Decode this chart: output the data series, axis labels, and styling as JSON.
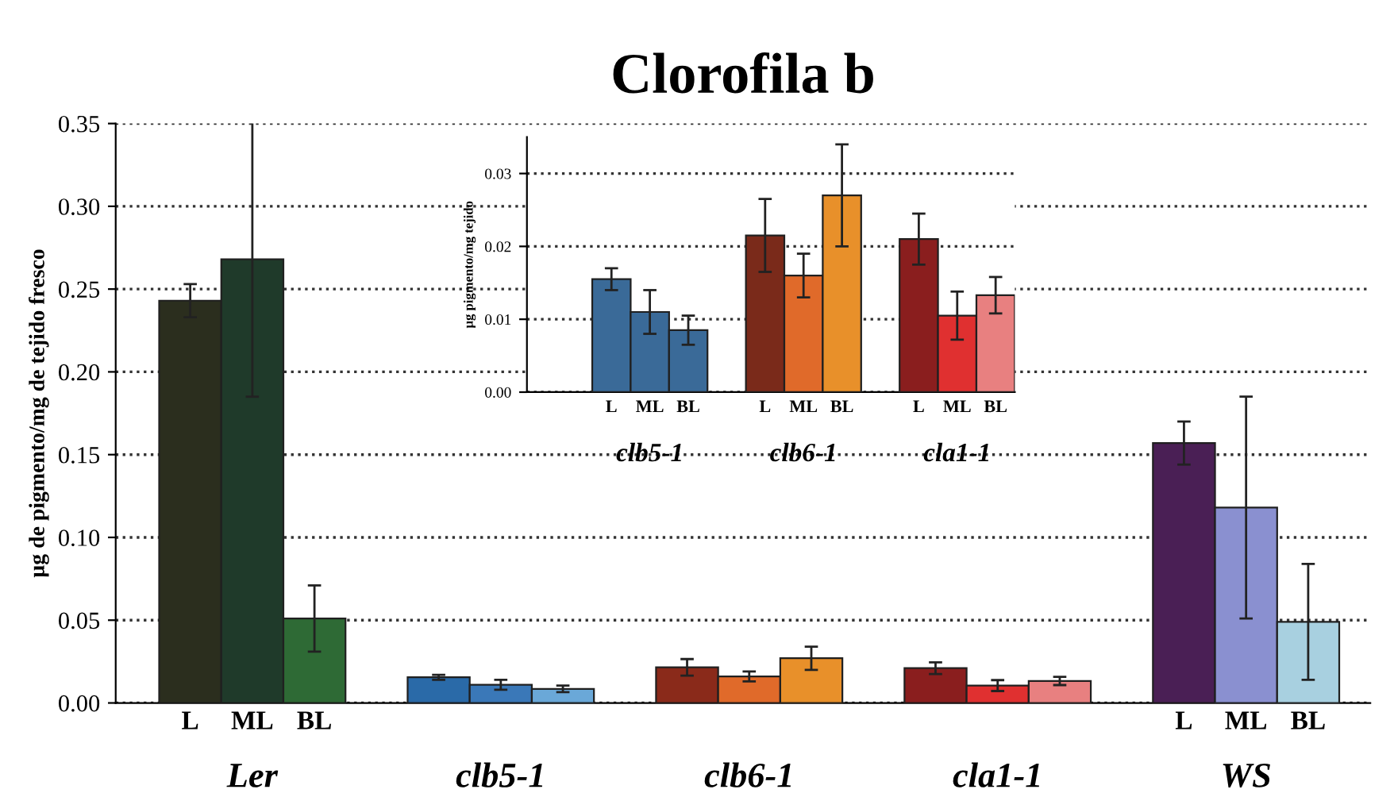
{
  "chart_data": [
    {
      "type": "bar",
      "title": "Clorofila b",
      "ylabel": "µg de pigmento/mg de tejido fresco",
      "categories": [
        "L",
        "ML",
        "BL",
        null,
        null,
        null,
        null,
        null,
        null,
        null,
        null,
        null,
        "L",
        "ML",
        "BL"
      ],
      "values": [
        0.243,
        0.268,
        0.051,
        0.0155,
        0.011,
        0.0085,
        0.0215,
        0.016,
        0.027,
        0.021,
        0.0105,
        0.0133,
        0.157,
        0.118,
        0.049
      ],
      "errors": [
        0.01,
        0.083,
        0.02,
        0.0015,
        0.003,
        0.002,
        0.005,
        0.003,
        0.007,
        0.0035,
        0.0033,
        0.0025,
        0.013,
        0.067,
        0.035
      ],
      "colors": [
        "#2b2e1e",
        "#1f3a2a",
        "#2e6a35",
        "#2a6aa8",
        "#3a78b8",
        "#6aa8d8",
        "#8a2a1a",
        "#e06a2a",
        "#e8902a",
        "#8a1e1e",
        "#e03030",
        "#e88080",
        "#4a1f55",
        "#8a90d0",
        "#a8d0e0"
      ],
      "annotations": [
        "Ler",
        "clb5-1",
        "clb6-1",
        "cla1-1",
        "WS"
      ],
      "ylim": [
        0,
        0.35
      ],
      "yticks": [
        {
          "value": 0,
          "label": "0.00"
        },
        {
          "value": 0.05,
          "label": "0.05"
        },
        {
          "value": 0.1,
          "label": "0.10"
        },
        {
          "value": 0.15,
          "label": "0.15"
        },
        {
          "value": 0.2,
          "label": "0.20"
        },
        {
          "value": 0.25,
          "label": "0.25"
        },
        {
          "value": 0.3,
          "label": "0.30"
        },
        {
          "value": 0.35,
          "label": "0.35"
        }
      ],
      "grid": "y",
      "line_style": "dotted"
    },
    {
      "type": "bar",
      "ylabel": "µg pigmento/mg tejido",
      "categories": [
        "L",
        "ML",
        "BL",
        "L",
        "ML",
        "BL",
        "L",
        "ML",
        "BL"
      ],
      "values": [
        0.0155,
        0.011,
        0.0085,
        0.0215,
        0.016,
        0.027,
        0.021,
        0.0105,
        0.0133
      ],
      "errors": [
        0.0015,
        0.003,
        0.002,
        0.005,
        0.003,
        0.007,
        0.0035,
        0.0033,
        0.0025
      ],
      "colors": [
        "#3a6a98",
        "#3a6a98",
        "#3a6a98",
        "#7a2a1a",
        "#e06a2a",
        "#e8902a",
        "#8a1e1e",
        "#e03030",
        "#e88080"
      ],
      "annotations": [
        "clb5-1",
        "clb6-1",
        "cla1-1"
      ],
      "ylim": [
        0,
        0.035
      ],
      "yticks": [
        {
          "value": 0,
          "label": "0.00"
        },
        {
          "value": 0.01,
          "label": "0.01"
        },
        {
          "value": 0.02,
          "label": "0.02"
        },
        {
          "value": 0.03,
          "label": "0.03"
        }
      ],
      "grid": "y",
      "line_style": "dotted"
    }
  ]
}
